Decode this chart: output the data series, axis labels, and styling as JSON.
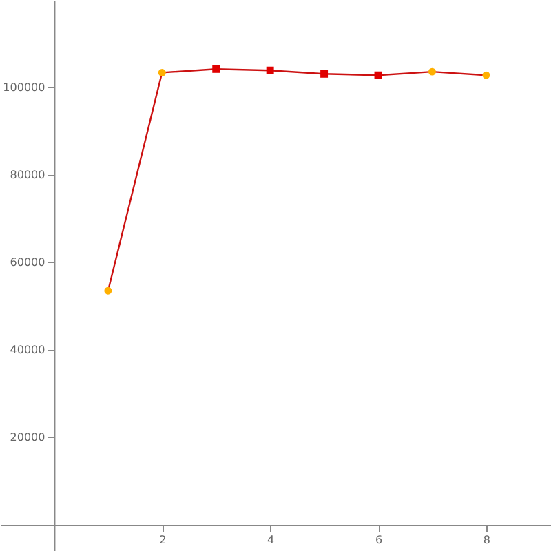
{
  "chart_data": {
    "type": "line",
    "x": [
      1,
      2,
      3,
      4,
      5,
      6,
      7,
      8
    ],
    "xlim": [
      -1,
      9.2
    ],
    "ylim": [
      -6000,
      120000
    ],
    "xticks": [
      2,
      4,
      6,
      8
    ],
    "yticks": [
      20000,
      40000,
      60000,
      80000,
      100000
    ],
    "grid": false,
    "series": [
      {
        "color": "#cc1111",
        "marker": "none",
        "values": [
          53500,
          103400,
          104200,
          103900,
          103100,
          102800,
          103600,
          102800
        ]
      },
      {
        "type": "scatter",
        "color": "#ffb000",
        "marker": "circle",
        "x": [
          1,
          2,
          7,
          8
        ],
        "values": [
          53500,
          103400,
          103600,
          102800
        ]
      },
      {
        "type": "scatter",
        "color": "#e00000",
        "marker": "square",
        "x": [
          3,
          4,
          5,
          6
        ],
        "values": [
          104200,
          103900,
          103100,
          102800
        ]
      }
    ]
  }
}
